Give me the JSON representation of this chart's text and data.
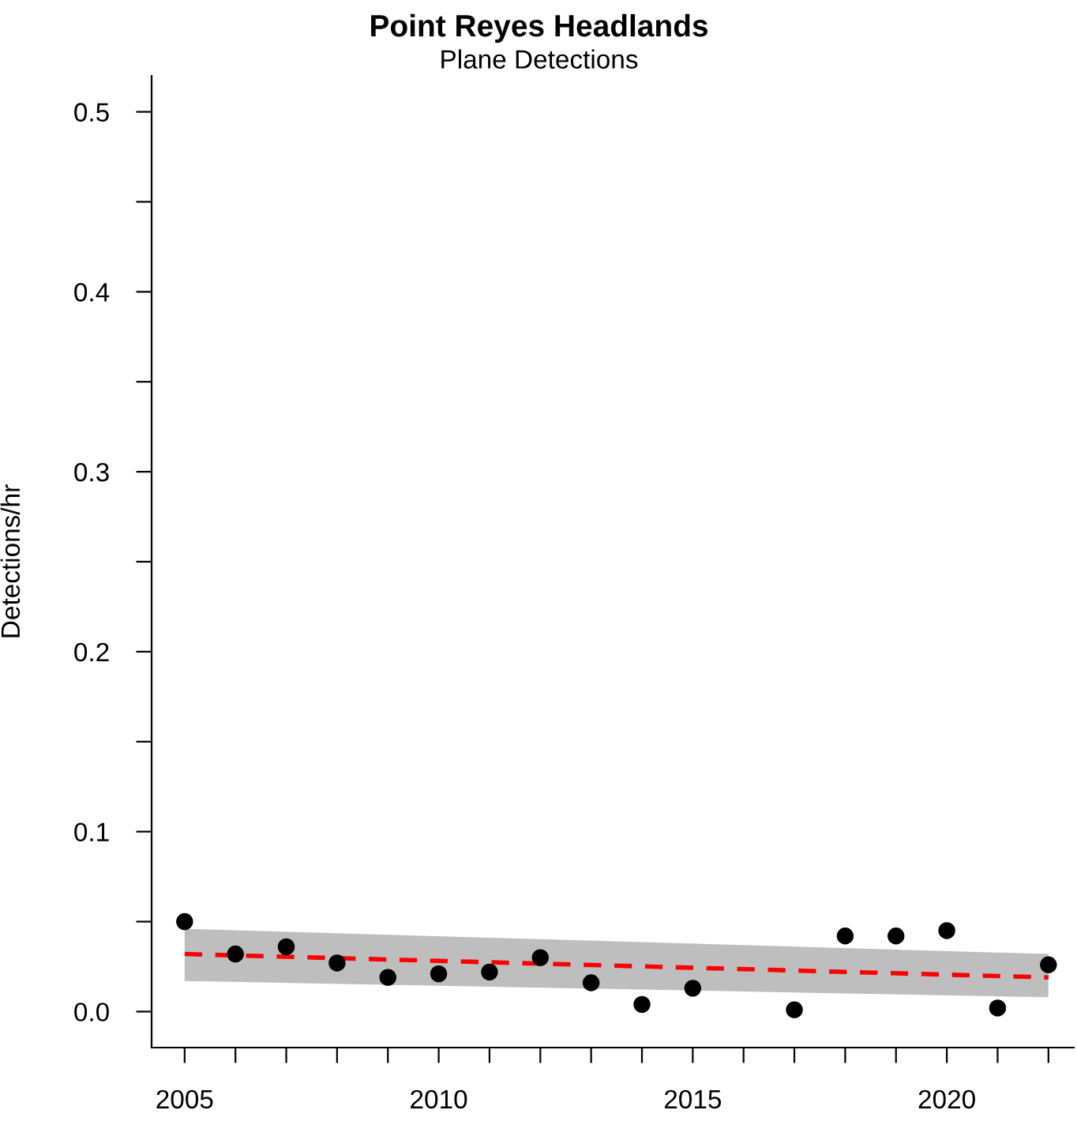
{
  "chart_data": {
    "type": "scatter",
    "title": "Point Reyes Headlands",
    "subtitle": "Plane Detections",
    "ylabel": "Detections/hr",
    "xlim": [
      2004.35,
      2022.5
    ],
    "ylim": [
      -0.02,
      0.52
    ],
    "xticks": [
      2005,
      {
        "value": 2006,
        "label": null
      },
      {
        "value": 2007,
        "label": null
      },
      {
        "value": 2008,
        "label": null
      },
      {
        "value": 2009,
        "label": null
      },
      2010,
      {
        "value": 2011,
        "label": null
      },
      {
        "value": 2012,
        "label": null
      },
      {
        "value": 2013,
        "label": null
      },
      {
        "value": 2014,
        "label": null
      },
      2015,
      {
        "value": 2016,
        "label": null
      },
      {
        "value": 2017,
        "label": null
      },
      {
        "value": 2018,
        "label": null
      },
      {
        "value": 2019,
        "label": null
      },
      2020,
      {
        "value": 2021,
        "label": null
      },
      {
        "value": 2022,
        "label": null
      }
    ],
    "yticks": [
      {
        "value": 0,
        "label": "0.0"
      },
      {
        "value": 0.05,
        "label": null
      },
      0.1,
      {
        "value": 0.15,
        "label": null
      },
      0.2,
      {
        "value": 0.25,
        "label": null
      },
      0.3,
      {
        "value": 0.35,
        "label": null
      },
      0.4,
      {
        "value": 0.45,
        "label": null
      },
      0.5
    ],
    "grid": false,
    "legend": false,
    "series": [
      {
        "type": "line",
        "color": "#ff0000",
        "line_style": "dashed",
        "marker": "none",
        "x": [
          2005,
          2022
        ],
        "values": [
          0.032,
          0.019
        ],
        "lower": [
          0.017,
          0.008
        ],
        "upper": [
          0.046,
          0.032
        ]
      },
      {
        "color": "#000000",
        "marker": "circle",
        "x": [
          2005,
          2006,
          2007,
          2008,
          2009,
          2010,
          2011,
          2012,
          2013,
          2014,
          2015,
          2017,
          2018,
          2019,
          2020,
          2021,
          2022
        ],
        "values": [
          0.05,
          0.032,
          0.036,
          0.027,
          0.019,
          0.021,
          0.022,
          0.03,
          0.016,
          0.004,
          0.013,
          0.001,
          0.042,
          0.042,
          0.045,
          0.002,
          0.026
        ]
      }
    ]
  }
}
